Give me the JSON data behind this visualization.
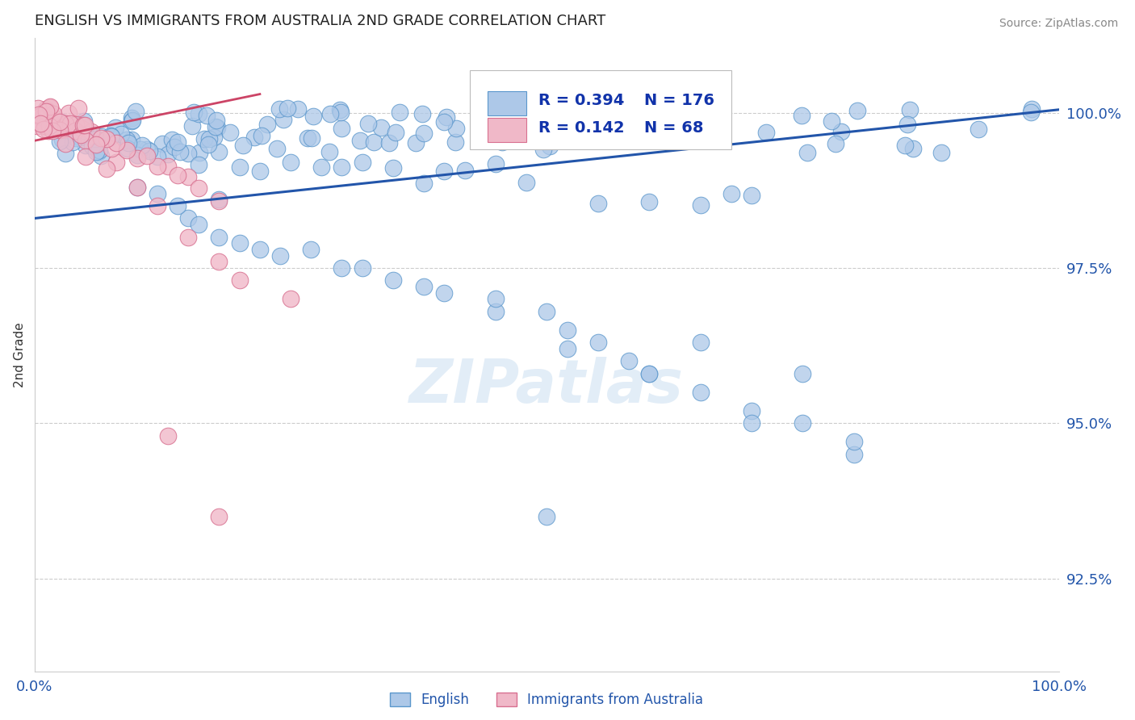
{
  "title": "ENGLISH VS IMMIGRANTS FROM AUSTRALIA 2ND GRADE CORRELATION CHART",
  "source": "Source: ZipAtlas.com",
  "ylabel": "2nd Grade",
  "xlim": [
    0.0,
    100.0
  ],
  "ylim": [
    91.0,
    101.2
  ],
  "yticks": [
    92.5,
    95.0,
    97.5,
    100.0
  ],
  "xtick_labels": [
    "0.0%",
    "100.0%"
  ],
  "ytick_labels": [
    "92.5%",
    "95.0%",
    "97.5%",
    "100.0%"
  ],
  "english_color": "#adc8e8",
  "english_edge_color": "#5b97cc",
  "immigrants_color": "#f0b8c8",
  "immigrants_edge_color": "#d87090",
  "english_line_color": "#2255aa",
  "immigrants_line_color": "#cc4466",
  "R_english": 0.394,
  "N_english": 176,
  "R_immigrants": 0.142,
  "N_immigrants": 68,
  "legend_english": "English",
  "legend_immigrants": "Immigrants from Australia",
  "watermark": "ZIPatlas",
  "background_color": "#ffffff",
  "title_color": "#222222",
  "axis_label_color": "#2255aa",
  "tick_label_color": "#2255aa",
  "grid_color": "#cccccc",
  "eng_line_x0": 0,
  "eng_line_x1": 100,
  "eng_line_y0": 98.3,
  "eng_line_y1": 100.05,
  "imm_line_x0": 0,
  "imm_line_x1": 22,
  "imm_line_y0": 99.55,
  "imm_line_y1": 100.3
}
